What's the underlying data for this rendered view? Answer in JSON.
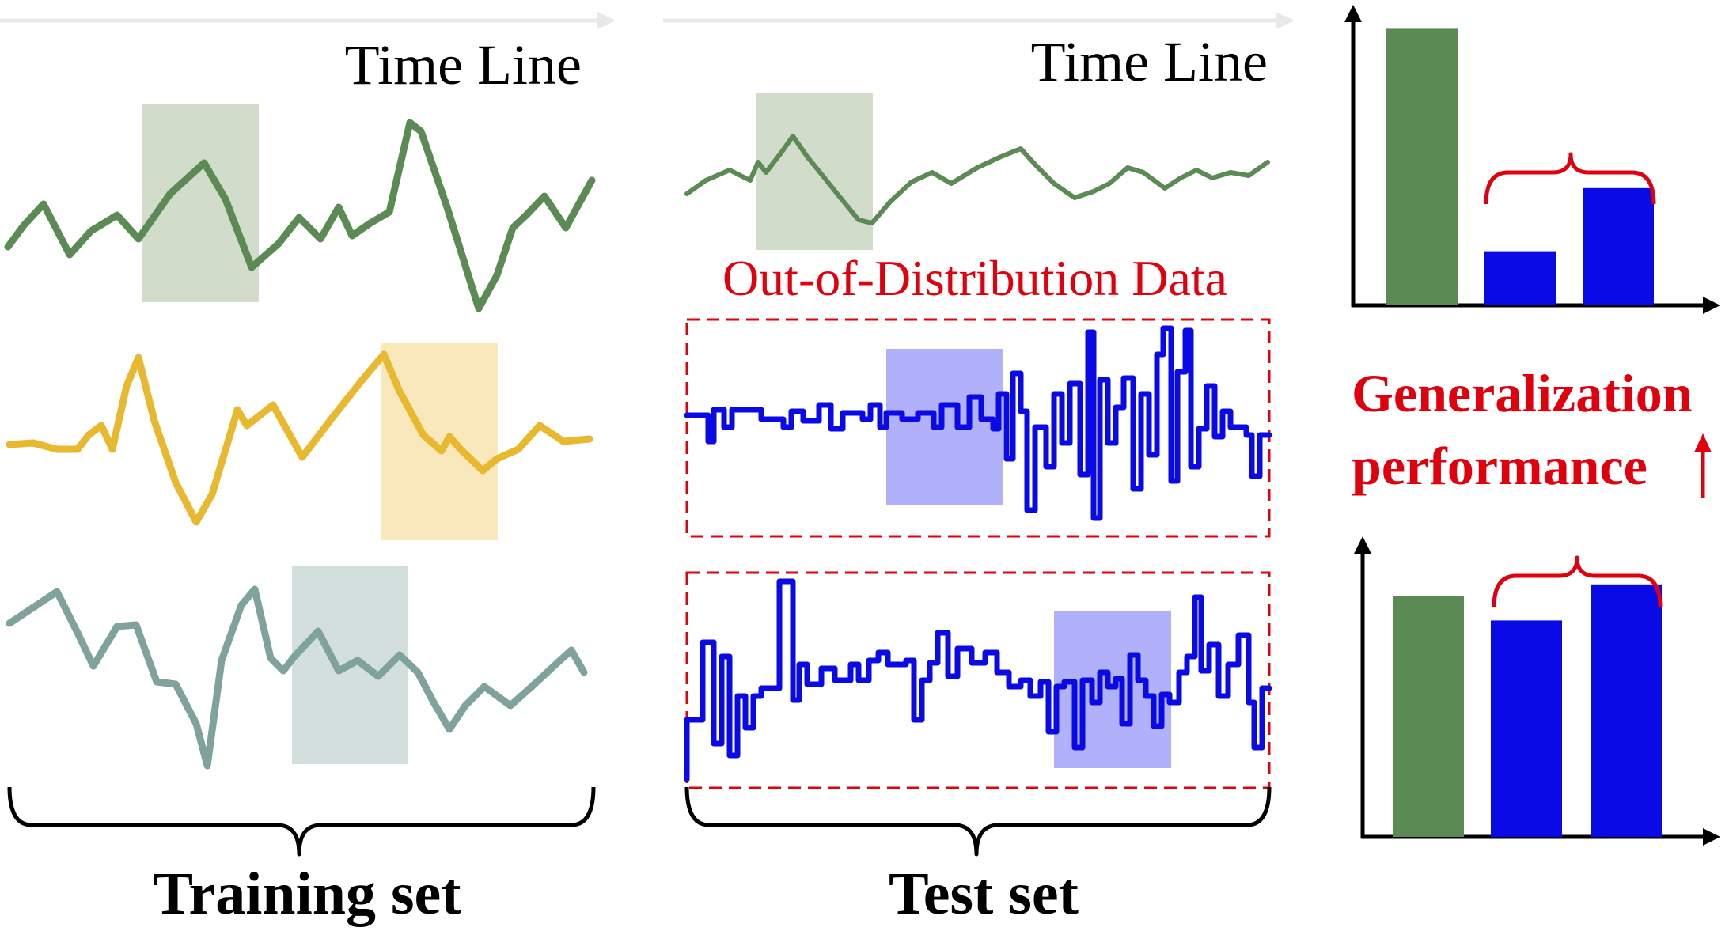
{
  "colors": {
    "green": "#5c8a55",
    "yellow": "#e8b82e",
    "teal": "#7fa39c",
    "blue": "#0a0ae6",
    "red": "#e0000e",
    "green_window": "#d1dccb",
    "yellow_window": "#f8e8bc",
    "teal_window": "#d2dfdc",
    "blue_window": "#b1b1fb",
    "arrow_grey": "#e8e8e8"
  },
  "training": {
    "timeline_label": "Time Line",
    "set_label": "Training set"
  },
  "test": {
    "timeline_label": "Time Line",
    "ood_label": "Out-of-Distribution Data",
    "set_label": "Test set"
  },
  "generalization": {
    "line1": "Generalization",
    "line2": "performance",
    "arrow_icon": "up-arrow-icon"
  },
  "chart_data": [
    {
      "type": "bar",
      "categories": [
        "",
        "",
        ""
      ],
      "values": [
        0.92,
        0.18,
        0.39
      ],
      "colors": [
        "#5c8a55",
        "#0a0ae6",
        "#0a0ae6"
      ],
      "title": "",
      "xlabel": "",
      "ylabel": "",
      "ylim": [
        0,
        1
      ]
    },
    {
      "type": "bar",
      "categories": [
        "",
        "",
        ""
      ],
      "values": [
        0.8,
        0.72,
        0.84
      ],
      "colors": [
        "#5c8a55",
        "#0a0ae6",
        "#0a0ae6"
      ],
      "title": "",
      "xlabel": "",
      "ylabel": "",
      "ylim": [
        0,
        1
      ]
    }
  ]
}
